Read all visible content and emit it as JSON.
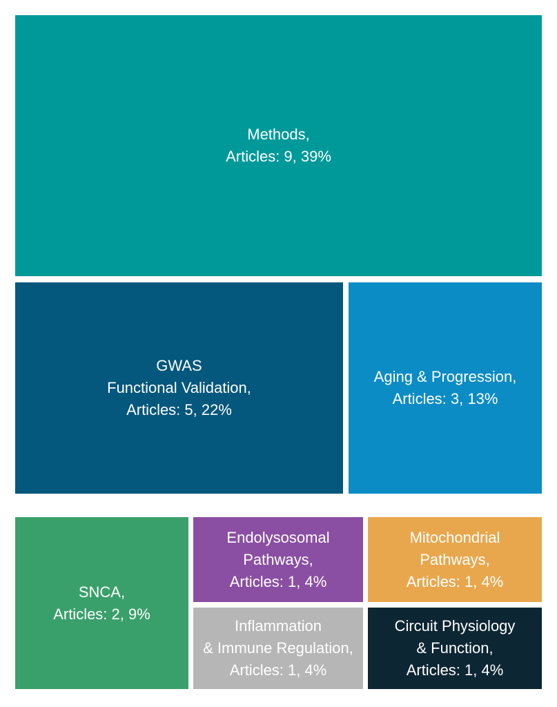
{
  "chart_data": {
    "type": "treemap",
    "items": [
      {
        "name": "Methods,",
        "stat": "Articles: 9, 39%",
        "articles": 9,
        "percent": 39,
        "color": "#009999"
      },
      {
        "name": "GWAS\nFunctional Validation,",
        "stat": "Articles: 5, 22%",
        "articles": 5,
        "percent": 22,
        "color": "#04577d"
      },
      {
        "name": "Aging & Progression,",
        "stat": "Articles: 3, 13%",
        "articles": 3,
        "percent": 13,
        "color": "#0c8cc5"
      },
      {
        "name": "SNCA,",
        "stat": "Articles: 2, 9%",
        "articles": 2,
        "percent": 9,
        "color": "#3aa06b"
      },
      {
        "name": "Endolysosomal\nPathways,",
        "stat": "Articles: 1, 4%",
        "articles": 1,
        "percent": 4,
        "color": "#8a4fa3"
      },
      {
        "name": "Mitochondrial\nPathways,",
        "stat": "Articles: 1, 4%",
        "articles": 1,
        "percent": 4,
        "color": "#e9a74d"
      },
      {
        "name": "Inflammation\n& Immune Regulation,",
        "stat": "Articles: 1, 4%",
        "articles": 1,
        "percent": 4,
        "color": "#b6b6b6"
      },
      {
        "name": "Circuit Physiology\n& Function,",
        "stat": "Articles: 1, 4%",
        "articles": 1,
        "percent": 4,
        "color": "#0d2634"
      }
    ]
  }
}
